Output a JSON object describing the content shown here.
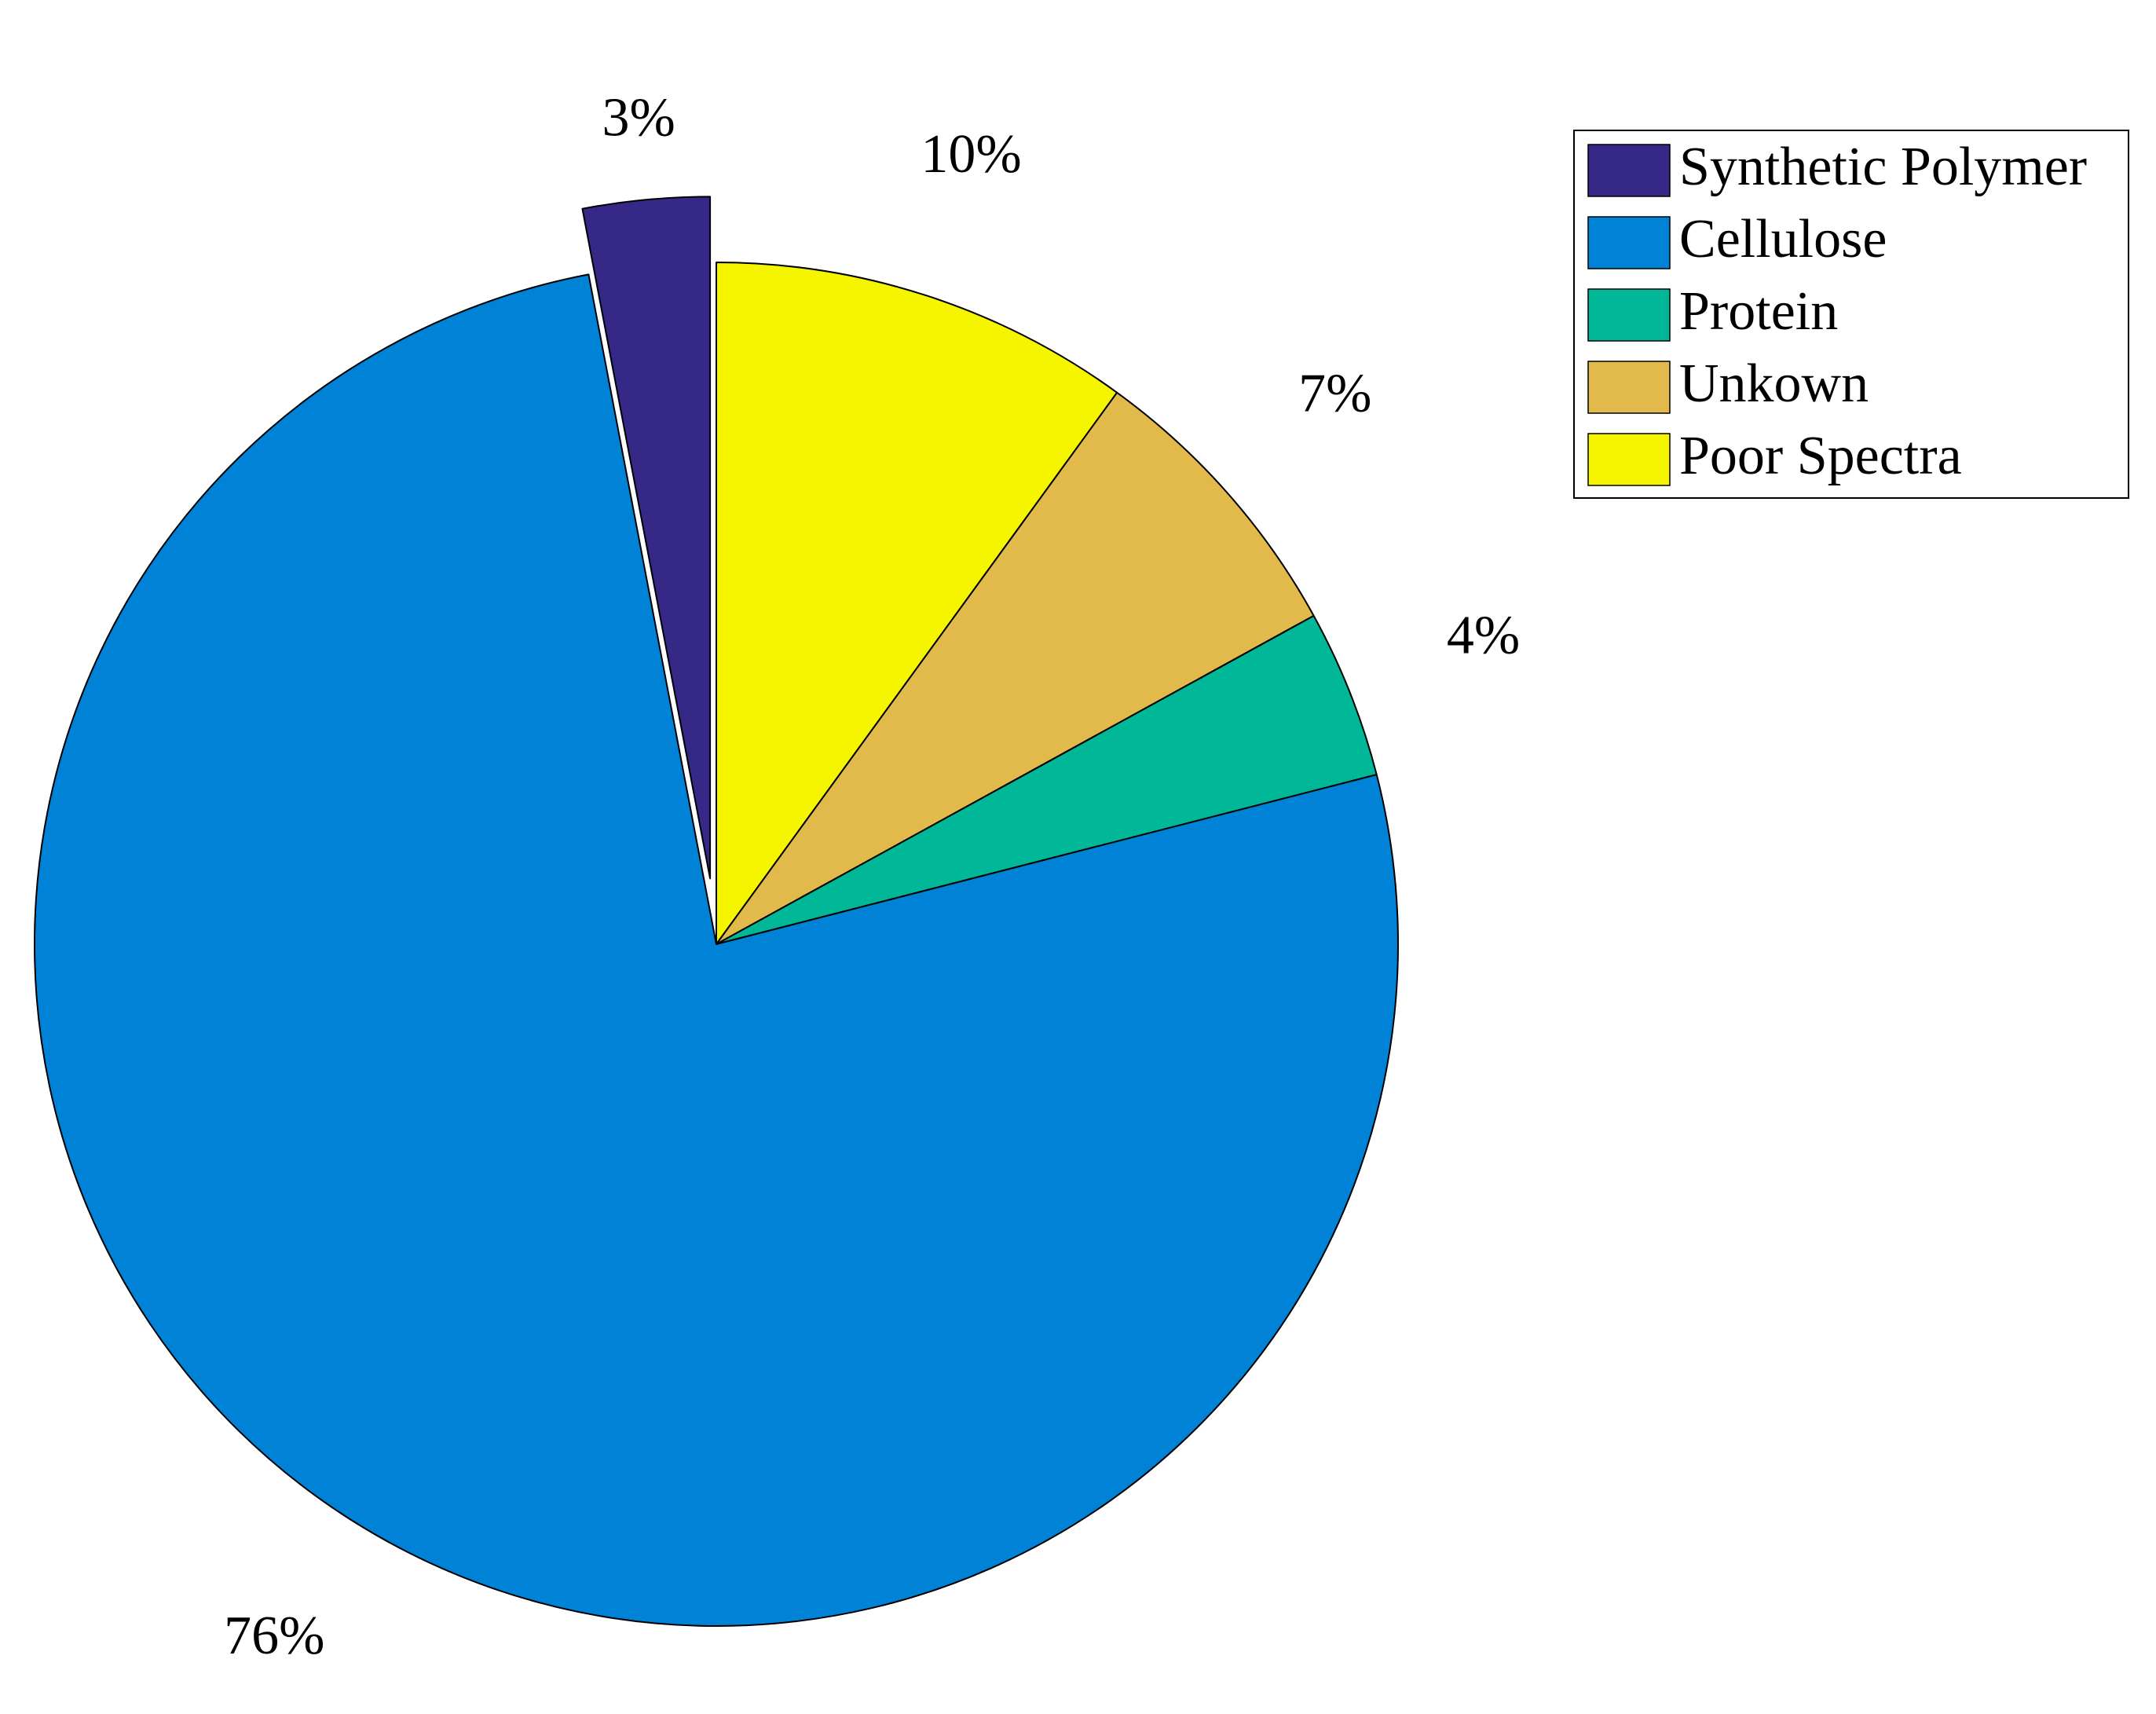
{
  "chart_data": {
    "type": "pie",
    "title": "",
    "start": "top",
    "direction": "clockwise",
    "legend_position": "top-right",
    "slices": [
      {
        "name": "Poor Spectra",
        "value": 10,
        "label": "10%",
        "color": "#F5F500",
        "exploded": false
      },
      {
        "name": "Unkown",
        "value": 7,
        "label": "7%",
        "color": "#E2B94B",
        "exploded": false
      },
      {
        "name": "Protein",
        "value": 4,
        "label": "4%",
        "color": "#00B897",
        "exploded": false
      },
      {
        "name": "Cellulose",
        "value": 76,
        "label": "76%",
        "color": "#0082D6",
        "exploded": false
      },
      {
        "name": "Synthetic Polymer",
        "value": 3,
        "label": "3%",
        "color": "#352887",
        "exploded": true
      }
    ],
    "legend": [
      {
        "name": "Synthetic Polymer",
        "color": "#352887"
      },
      {
        "name": "Cellulose",
        "color": "#0082D6"
      },
      {
        "name": "Protein",
        "color": "#00B897"
      },
      {
        "name": "Unkown",
        "color": "#E2B94B"
      },
      {
        "name": "Poor Spectra",
        "color": "#F5F500"
      }
    ]
  }
}
